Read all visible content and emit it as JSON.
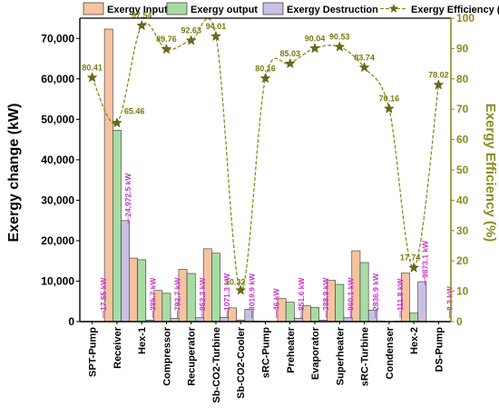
{
  "chart_data": {
    "type": "bar",
    "categories": [
      "SPT-Pump",
      "Receiver",
      "Hex-1",
      "Compressor",
      "Recuperator",
      "Sb-CO2-Turbine",
      "Sb-CO2-Cooler",
      "sRC-Pump",
      "Preheater",
      "Evaporator",
      "Superheater",
      "sRC-Turbine",
      "Condenser",
      "Hex-2",
      "DS-Pump"
    ],
    "series": [
      {
        "name": "Exergy Input",
        "color": "#f6c3a0",
        "values": [
          80,
          72300,
          15700,
          7700,
          12900,
          18000,
          3400,
          120,
          5700,
          3900,
          10200,
          17500,
          150,
          12000,
          60
        ]
      },
      {
        "name": "Exergy output",
        "color": "#a8dca3",
        "values": [
          60,
          47300,
          15300,
          7000,
          11900,
          16900,
          400,
          80,
          4800,
          3500,
          9200,
          14600,
          40,
          2100,
          50
        ]
      },
      {
        "name": "Exergy Destruction",
        "color": "#c9c0e3",
        "values": [
          17.55,
          24972.5,
          385.7,
          792.7,
          952.2,
          1071.3,
          3019.9,
          46,
          851.6,
          388.9,
          960.1,
          2836.9,
          111.8,
          9873.1,
          8.3
        ]
      }
    ],
    "efficiency": {
      "name": "Exergy Efficiency (%)",
      "color": "#8c8c1e",
      "values": [
        80.41,
        65.46,
        97.54,
        89.76,
        92.63,
        94.01,
        10.32,
        80.16,
        85.03,
        90.04,
        90.53,
        83.74,
        70.16,
        17.74,
        78.02
      ],
      "labels": [
        "80.41",
        "65.46",
        "97.54",
        "89.76",
        "92.63",
        "94.01",
        "10.32",
        "80.16",
        "85.03",
        "90.04",
        "90.53",
        "83.74",
        "70.16",
        "17.74",
        "78.02"
      ]
    },
    "destruction_labels": [
      "17.55 kW",
      "24,972.5 kW",
      "385.7 kW",
      "792.7 kW",
      "952.2 kW",
      "1071.3 kW",
      "3019.9 kW",
      "46 kW",
      "851.6 kW",
      "388.9 kW",
      "960.1 kW",
      "2836.9 kW",
      "111.8 kW",
      "9873.1 kW",
      "8.3 kW"
    ],
    "ylabel": "Exergy change (kW)",
    "ylabel_right": "Exergy Efficiency (%)",
    "ylim": [
      0,
      75000
    ],
    "ylim_right": [
      0,
      100
    ],
    "yticks": [
      0,
      10000,
      20000,
      30000,
      40000,
      50000,
      60000,
      70000
    ],
    "ytick_labels": [
      "0",
      "10,000",
      "20,000",
      "30,000",
      "40,000",
      "50,000",
      "60,000",
      "70,000"
    ],
    "yticks_right": [
      0,
      10,
      20,
      30,
      40,
      50,
      60,
      70,
      80,
      90,
      100
    ],
    "ytick_labels_right": [
      "0",
      "10",
      "20",
      "30",
      "40",
      "50",
      "60",
      "70",
      "80",
      "90",
      "100"
    ],
    "legend_position": "top",
    "annotation_color": "#cc33cc",
    "right_axis_color": "#8c8c1e",
    "grid": false
  }
}
